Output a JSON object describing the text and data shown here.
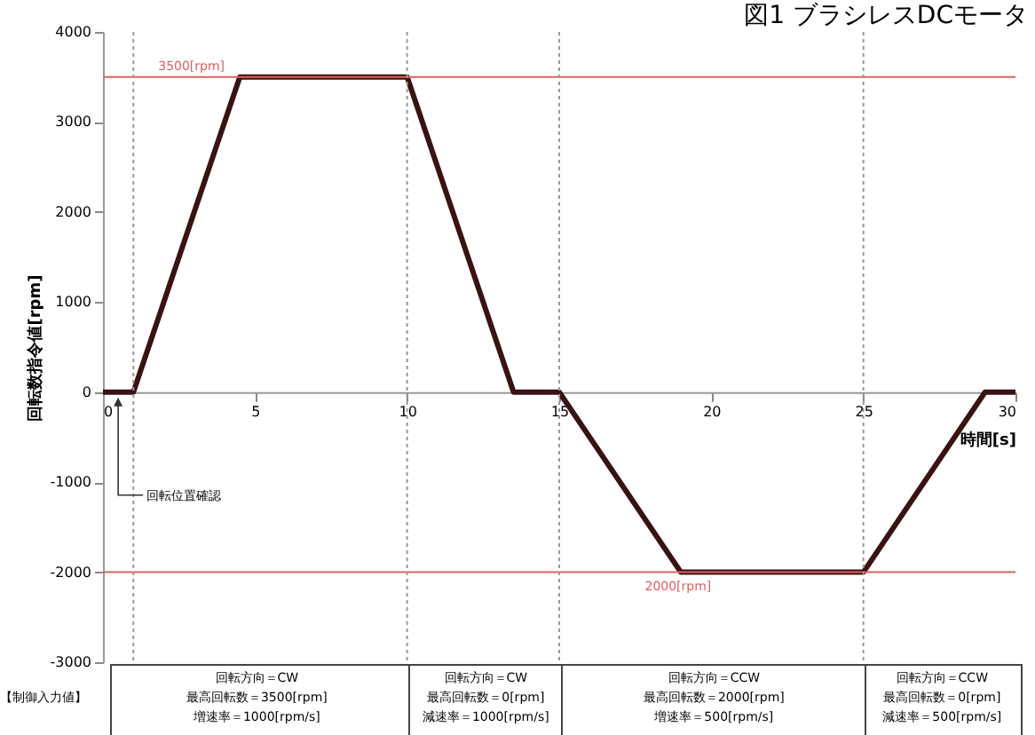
{
  "chart_data": {
    "type": "line",
    "title": "図1 ブラシレスDCモータ",
    "xlabel": "時間[s]",
    "ylabel": "回転数指令値[rpm]",
    "x": [
      0,
      1,
      4.5,
      6,
      8,
      10,
      13.5,
      15,
      19,
      22,
      25,
      29,
      30
    ],
    "series": [
      {
        "color": "#3a1212",
        "values": [
          0,
          0,
          3500,
          3500,
          3500,
          3500,
          0,
          0,
          -2000,
          -2000,
          -2000,
          0,
          0
        ]
      }
    ],
    "xlim": [
      0,
      30
    ],
    "xticks": [
      0,
      5,
      10,
      15,
      20,
      25,
      30
    ],
    "ylim": [
      -3000,
      4000
    ],
    "yticks": [
      -3000,
      -2000,
      -1000,
      0,
      1000,
      2000,
      3000,
      4000
    ],
    "line_style": "solid",
    "ref_lines": [
      {
        "axis": "y",
        "value": 3500,
        "label": "3500[rpm]",
        "color": "#e06060"
      },
      {
        "axis": "y",
        "value": -2000,
        "label": "2000[rpm]",
        "color": "#e06060"
      },
      {
        "axis": "x",
        "value": 1,
        "color": "#999999",
        "line_style": "dotted"
      },
      {
        "axis": "x",
        "value": 10,
        "color": "#999999",
        "line_style": "dotted"
      },
      {
        "axis": "x",
        "value": 15,
        "color": "#999999",
        "line_style": "dotted"
      },
      {
        "axis": "x",
        "value": 25,
        "color": "#999999",
        "line_style": "dotted"
      }
    ],
    "annotations": [
      "回転位置確認",
      "【制御入力値】",
      "回転方向＝CW\n最高回転数＝3500[rpm]\n増速率＝1000[rpm/s]",
      "回転方向＝CW\n最高回転数＝0[rpm]\n減速率＝1000[rpm/s]",
      "回転方向＝CCW\n最高回転数＝2000[rpm]\n増速率＝500[rpm/s]",
      "回転方向＝CCW\n最高回転数＝0[rpm]\n減速率＝500[rpm/s]"
    ]
  }
}
